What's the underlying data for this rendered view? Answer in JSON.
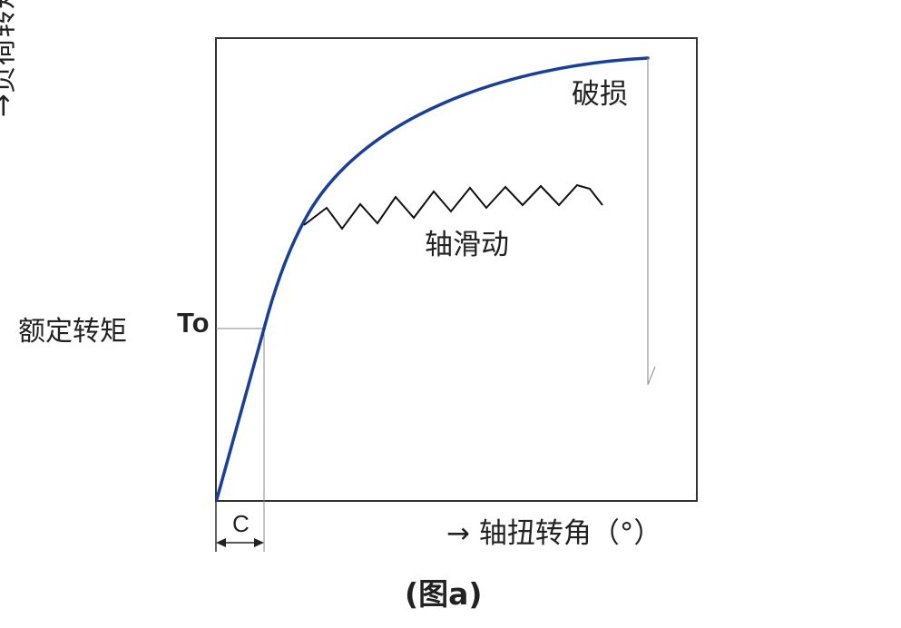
{
  "figure": {
    "y_axis_label": "→负荷转矩(N・m)",
    "x_axis_label": "→ 轴扭转角（°）",
    "rated_torque_label": "额定转矩",
    "rated_torque_symbol": "To",
    "breakage_label": "破损",
    "slip_label": "轴滑动",
    "c_label": "C",
    "caption": "(图a)"
  },
  "colors": {
    "curve": "#1a3f99",
    "frame": "#333333",
    "zigzag": "#111111",
    "guide": "#888888",
    "text": "#222222"
  }
}
